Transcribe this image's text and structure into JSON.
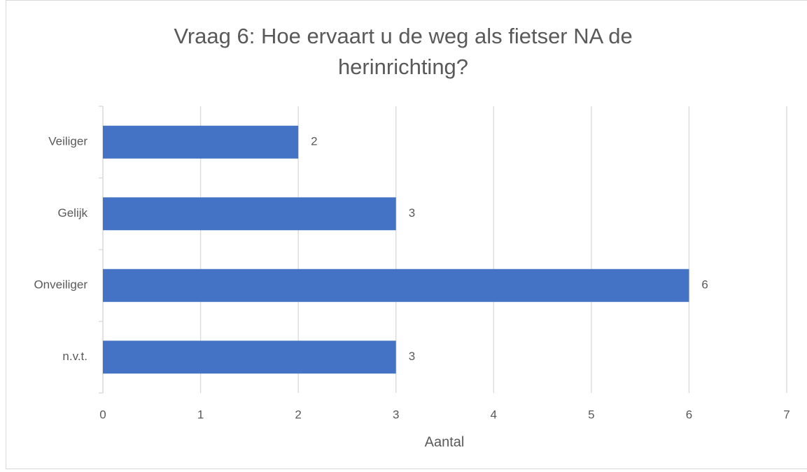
{
  "chart_data": {
    "type": "bar",
    "orientation": "horizontal",
    "title": "Vraag 6: Hoe ervaart u de weg als fietser NA de herinrichting?",
    "categories": [
      "Veiliger",
      "Gelijk",
      "Onveiliger",
      "n.v.t."
    ],
    "values": [
      2,
      3,
      6,
      3
    ],
    "color": "#4472c4",
    "xlabel": "Aantal",
    "xlim": [
      0,
      7
    ],
    "xticks": [
      0,
      1,
      2,
      3,
      4,
      5,
      6,
      7
    ],
    "grid": true
  }
}
